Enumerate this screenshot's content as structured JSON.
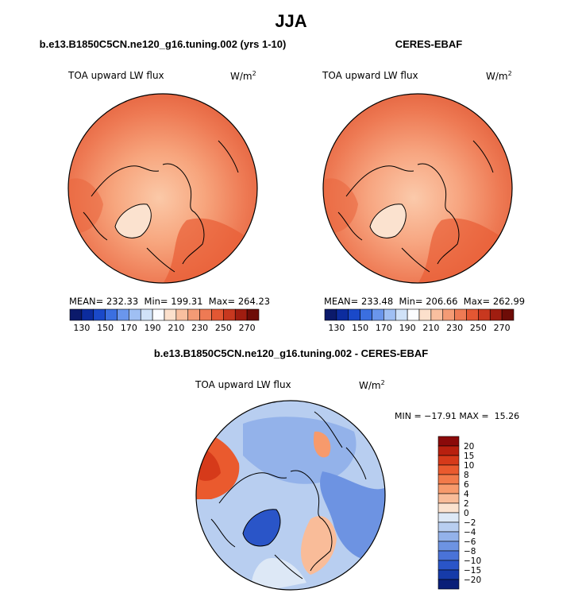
{
  "figure": {
    "season": "JJA",
    "diff_title": "b.e13.B1850C5CN.ne120_g16.tuning.002 - CERES-EBAF"
  },
  "panels": {
    "model": {
      "title": "b.e13.B1850C5CN.ne120_g16.tuning.002 (yrs 1-10)",
      "variable": "TOA upward LW flux",
      "units": "W/m",
      "units_exp": "2",
      "mean_label": "MEAN=",
      "mean": "232.33",
      "min_label": "Min=",
      "min": "199.31",
      "max_label": "Max=",
      "max": "264.23"
    },
    "obs": {
      "title": "CERES-EBAF",
      "variable": "TOA upward LW flux",
      "units": "W/m",
      "units_exp": "2",
      "mean_label": "MEAN=",
      "mean": "233.48",
      "min_label": "Min=",
      "min": "206.66",
      "max_label": "Max=",
      "max": "262.99"
    },
    "diff": {
      "variable": "TOA upward LW flux",
      "units": "W/m",
      "units_exp": "2",
      "minmax_text": "MIN = −17.91 MAX =  15.26"
    }
  },
  "chart_data": [
    {
      "type": "heatmap",
      "title": "b.e13.B1850C5CN.ne120_g16.tuning.002 (yrs 1-10)",
      "projection": "north-polar-stereographic",
      "variable": "TOA upward LW flux",
      "units": "W/m^2",
      "stats": {
        "mean": 232.33,
        "min": 199.31,
        "max": 264.23
      },
      "colorbar": {
        "orientation": "horizontal",
        "levels": [
          130,
          140,
          150,
          160,
          170,
          180,
          190,
          200,
          210,
          220,
          230,
          240,
          250,
          260,
          270
        ],
        "tick_labels": [
          "130",
          "150",
          "170",
          "190",
          "210",
          "230",
          "250",
          "270"
        ],
        "colors": [
          "#0b1a6b",
          "#0c2c9e",
          "#1a49c9",
          "#3b6fe0",
          "#6a96ec",
          "#9fbff3",
          "#d0e2f8",
          "#fbfcff",
          "#fce0cc",
          "#f9bf9f",
          "#f49b75",
          "#ee7a54",
          "#e35733",
          "#c8381f",
          "#a01d10",
          "#6e0c07"
        ]
      }
    },
    {
      "type": "heatmap",
      "title": "CERES-EBAF",
      "projection": "north-polar-stereographic",
      "variable": "TOA upward LW flux",
      "units": "W/m^2",
      "stats": {
        "mean": 233.48,
        "min": 206.66,
        "max": 262.99
      },
      "colorbar": {
        "orientation": "horizontal",
        "levels": [
          130,
          140,
          150,
          160,
          170,
          180,
          190,
          200,
          210,
          220,
          230,
          240,
          250,
          260,
          270
        ],
        "tick_labels": [
          "130",
          "150",
          "170",
          "190",
          "210",
          "230",
          "250",
          "270"
        ],
        "colors": [
          "#0b1a6b",
          "#0c2c9e",
          "#1a49c9",
          "#3b6fe0",
          "#6a96ec",
          "#9fbff3",
          "#d0e2f8",
          "#fbfcff",
          "#fce0cc",
          "#f9bf9f",
          "#f49b75",
          "#ee7a54",
          "#e35733",
          "#c8381f",
          "#a01d10",
          "#6e0c07"
        ]
      }
    },
    {
      "type": "heatmap",
      "title": "b.e13.B1850C5CN.ne120_g16.tuning.002 - CERES-EBAF",
      "projection": "north-polar-stereographic",
      "variable": "TOA upward LW flux",
      "units": "W/m^2",
      "stats": {
        "min": -17.91,
        "max": 15.26
      },
      "colorbar": {
        "orientation": "vertical",
        "levels": [
          -20,
          -15,
          -10,
          -8,
          -6,
          -4,
          -2,
          0,
          2,
          4,
          6,
          8,
          10,
          15,
          20
        ],
        "tick_labels": [
          "20",
          "15",
          "10",
          "8",
          "6",
          "4",
          "2",
          "0",
          "−2",
          "−4",
          "−6",
          "−8",
          "−10",
          "−15",
          "−20"
        ],
        "colors_top_to_bottom": [
          "#8b0a0a",
          "#b8200f",
          "#d63a1a",
          "#ea5a2e",
          "#f27a4a",
          "#f79a6c",
          "#f9bc99",
          "#fbe2cf",
          "#dde8f6",
          "#b8cef0",
          "#93b2ea",
          "#6d93e2",
          "#4a73d8",
          "#2a55c8",
          "#163ba8",
          "#0a1f78"
        ]
      }
    }
  ]
}
